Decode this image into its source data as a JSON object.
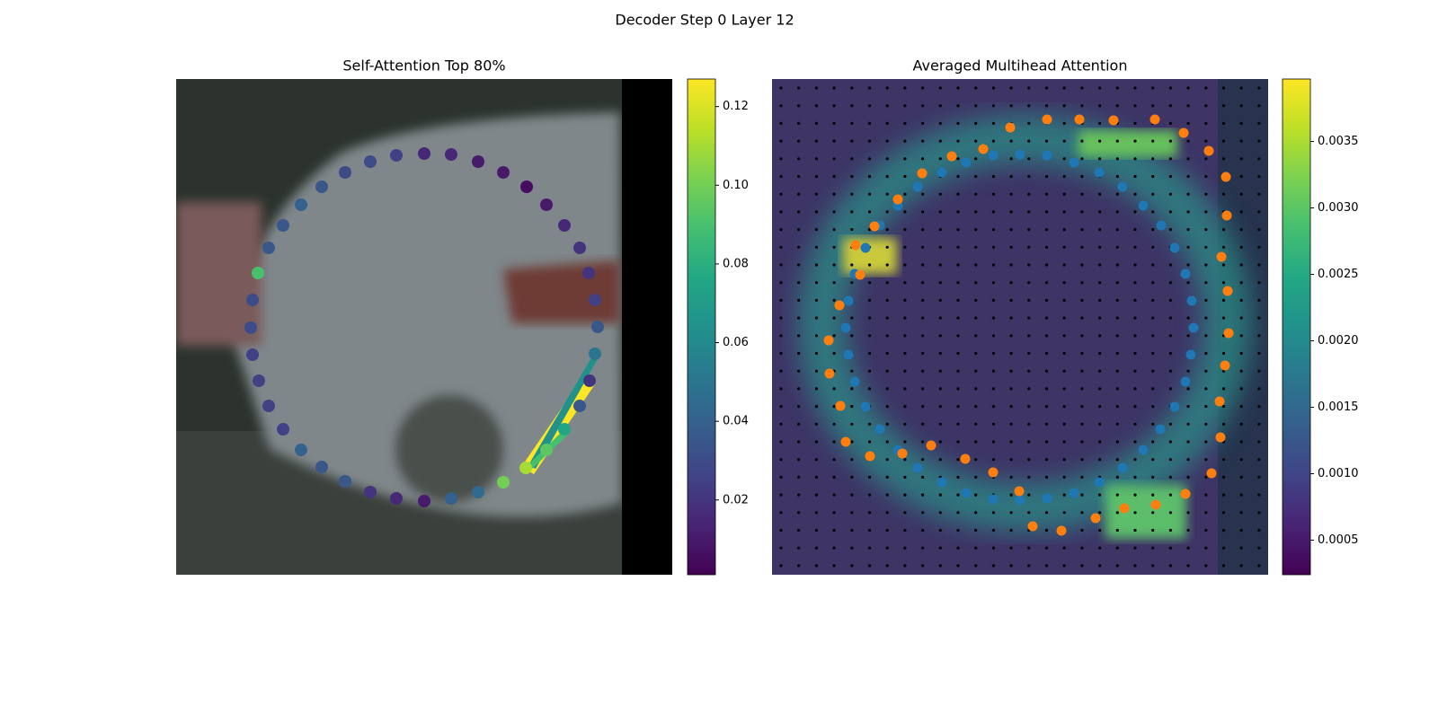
{
  "title": "Decoder Step 0 Layer 12",
  "chart_data": [
    {
      "type": "scatter",
      "title": "Self-Attention Top 80%",
      "xlim": [
        0,
        552
      ],
      "ylim": [
        552,
        0
      ],
      "x": [
        276,
        306,
        336,
        364,
        390,
        412,
        432,
        449,
        459,
        466,
        469,
        466,
        460,
        449,
        432,
        412,
        389,
        364,
        336,
        306,
        276,
        245,
        216,
        188,
        162,
        139,
        119,
        103,
        92,
        85,
        83,
        85,
        91,
        103,
        119,
        139,
        162,
        188,
        216,
        245
      ],
      "y": [
        83,
        84,
        92,
        104,
        120,
        140,
        163,
        188,
        216,
        246,
        276,
        306,
        336,
        364,
        390,
        413,
        433,
        449,
        460,
        467,
        470,
        467,
        460,
        448,
        432,
        413,
        390,
        364,
        336,
        307,
        277,
        246,
        216,
        188,
        163,
        140,
        120,
        104,
        92,
        85
      ],
      "values": [
        0.015,
        0.015,
        0.01,
        0.01,
        0.005,
        0.01,
        0.015,
        0.02,
        0.02,
        0.025,
        0.035,
        0.05,
        0.02,
        0.035,
        0.075,
        0.095,
        0.11,
        0.1,
        0.045,
        0.04,
        0.01,
        0.015,
        0.02,
        0.035,
        0.035,
        0.04,
        0.025,
        0.025,
        0.025,
        0.025,
        0.03,
        0.03,
        0.09,
        0.035,
        0.035,
        0.04,
        0.035,
        0.03,
        0.03,
        0.025
      ],
      "clim": [
        0.001,
        0.127
      ],
      "cticks": [
        0.02,
        0.04,
        0.06,
        0.08,
        {
          "value": 0.1,
          "label": "0.10"
        },
        0.12
      ]
    },
    {
      "type": "multiscatter",
      "title": "Averaged Multihead Attention",
      "xlim": [
        0,
        552
      ],
      "ylim": [
        552,
        0
      ],
      "series": [
        {
          "color": "#1f77b4",
          "x": [
            276,
            306,
            336,
            364,
            390,
            413,
            433,
            448,
            460,
            467,
            469,
            466,
            460,
            448,
            432,
            413,
            390,
            364,
            336,
            306,
            276,
            246,
            216,
            189,
            162,
            140,
            120,
            104,
            92,
            85,
            82,
            85,
            92,
            104,
            120,
            140,
            162,
            189,
            216,
            246
          ],
          "y": [
            84,
            85,
            93,
            104,
            120,
            141,
            163,
            188,
            217,
            247,
            277,
            307,
            337,
            365,
            390,
            413,
            433,
            449,
            461,
            467,
            469,
            468,
            461,
            449,
            433,
            413,
            390,
            365,
            337,
            307,
            277,
            247,
            217,
            188,
            163,
            141,
            120,
            104,
            93,
            85
          ]
        },
        {
          "color": "#ff7f0e",
          "x": [
            265,
            306,
            342,
            380,
            426,
            458,
            486,
            505,
            506,
            500,
            507,
            508,
            504,
            498,
            499,
            489,
            460,
            427,
            392,
            360,
            322,
            290,
            275,
            246,
            215,
            177,
            145,
            109,
            82,
            76,
            64,
            63,
            75,
            98,
            93,
            114,
            140,
            167,
            200,
            235
          ],
          "y": [
            54,
            45,
            45,
            46,
            45,
            60,
            80,
            109,
            152,
            198,
            236,
            283,
            319,
            359,
            399,
            439,
            462,
            474,
            478,
            489,
            503,
            498,
            459,
            438,
            423,
            408,
            417,
            420,
            404,
            364,
            328,
            291,
            252,
            218,
            185,
            164,
            134,
            105,
            86,
            78
          ]
        }
      ],
      "clim": [
        0.00024,
        0.00397
      ],
      "cticks": [
        0.0005,
        {
          "value": 0.001,
          "label": "0.0010"
        },
        0.0015,
        {
          "value": 0.002,
          "label": "0.0020"
        },
        0.0025,
        {
          "value": 0.003,
          "label": "0.0030"
        },
        0.0035
      ]
    }
  ]
}
